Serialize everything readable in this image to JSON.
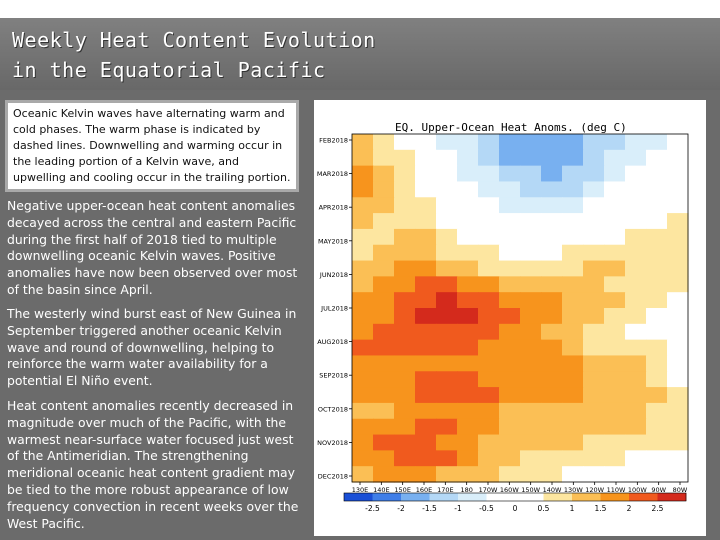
{
  "title": {
    "line1": "Weekly Heat Content Evolution",
    "line2": "in the Equatorial Pacific"
  },
  "note": "Oceanic Kelvin waves have alternating warm and cold phases. The warm phase is indicated by dashed lines. Downwelling and warming occur in the leading portion of a Kelvin wave, and upwelling and cooling occur in the trailing portion.",
  "paragraphs": [
    "Negative upper-ocean heat content anomalies decayed across the central and eastern Pacific during the first half of 2018 tied to multiple downwelling oceanic Kelvin waves. Positive anomalies have now been observed over most of the basin since April.",
    "The westerly wind burst east of New Guinea in September triggered another oceanic Kelvin wave and round of downwelling, helping to reinforce the warm water availability for a potential El Niño event.",
    "Heat content anomalies recently decreased in magnitude over much of the Pacific, with the warmest near-surface water focused just west of the Antimeridian. The strengthening meridional oceanic heat content gradient may be tied to the more robust appearance of low frequency convection in recent weeks over the West Pacific."
  ],
  "chart_data": {
    "type": "heatmap",
    "title": "EQ. Upper-Ocean Heat Anoms. (deg C)",
    "y_ticks": [
      "FEB2018",
      "MAR2018",
      "APR2018",
      "MAY2018",
      "JUN2018",
      "JUL2018",
      "AUG2018",
      "SEP2018",
      "OCT2018",
      "NOV2018",
      "DEC2018"
    ],
    "x_ticks": [
      "130E",
      "140E",
      "150E",
      "160E",
      "170E",
      "180",
      "170W",
      "160W",
      "150W",
      "140W",
      "130W",
      "120W",
      "110W",
      "100W",
      "90W",
      "80W"
    ],
    "colorbar_labels": [
      "-2.5",
      "-2",
      "-1.5",
      "-1",
      "-0.5",
      "0",
      "0.5",
      "1",
      "1.5",
      "2",
      "2.5"
    ],
    "colors": [
      "#1a4fd6",
      "#3f7ee8",
      "#78b0f0",
      "#b4d8f6",
      "#d9eefa",
      "#ffffff",
      "#ffffff",
      "#fde6a0",
      "#fbbf55",
      "#f7941d",
      "#f05a1e",
      "#d42a1c"
    ],
    "grid": [
      [
        8,
        7,
        6,
        5,
        4,
        4,
        3,
        2,
        2,
        2,
        2,
        3,
        3,
        4,
        4,
        5
      ],
      [
        8,
        7,
        7,
        6,
        5,
        4,
        3,
        2,
        2,
        2,
        2,
        3,
        4,
        4,
        5,
        5
      ],
      [
        9,
        8,
        7,
        6,
        5,
        4,
        4,
        3,
        3,
        2,
        3,
        3,
        4,
        5,
        5,
        6
      ],
      [
        9,
        8,
        7,
        6,
        6,
        5,
        4,
        4,
        3,
        3,
        3,
        4,
        5,
        5,
        6,
        6
      ],
      [
        8,
        8,
        7,
        7,
        6,
        5,
        5,
        4,
        4,
        4,
        4,
        5,
        5,
        6,
        6,
        6
      ],
      [
        8,
        7,
        7,
        7,
        6,
        6,
        5,
        5,
        5,
        5,
        5,
        5,
        6,
        6,
        6,
        7
      ],
      [
        7,
        7,
        8,
        8,
        7,
        6,
        6,
        5,
        5,
        6,
        6,
        6,
        6,
        7,
        7,
        7
      ],
      [
        7,
        8,
        8,
        8,
        7,
        7,
        7,
        6,
        6,
        6,
        7,
        7,
        7,
        7,
        7,
        7
      ],
      [
        8,
        8,
        9,
        9,
        8,
        8,
        7,
        7,
        7,
        7,
        7,
        8,
        8,
        7,
        7,
        7
      ],
      [
        8,
        9,
        9,
        10,
        10,
        9,
        9,
        8,
        8,
        8,
        8,
        8,
        7,
        7,
        7,
        7
      ],
      [
        9,
        9,
        10,
        10,
        11,
        10,
        10,
        9,
        9,
        9,
        8,
        8,
        8,
        7,
        7,
        6
      ],
      [
        9,
        9,
        10,
        11,
        11,
        11,
        10,
        10,
        9,
        9,
        8,
        8,
        7,
        7,
        6,
        6
      ],
      [
        9,
        10,
        10,
        10,
        10,
        10,
        10,
        9,
        9,
        8,
        8,
        7,
        7,
        6,
        6,
        6
      ],
      [
        10,
        10,
        10,
        10,
        10,
        10,
        9,
        9,
        9,
        9,
        8,
        7,
        7,
        7,
        7,
        6
      ],
      [
        9,
        9,
        9,
        9,
        9,
        9,
        9,
        9,
        9,
        9,
        9,
        8,
        8,
        8,
        7,
        6
      ],
      [
        9,
        9,
        9,
        10,
        10,
        10,
        9,
        9,
        9,
        9,
        9,
        8,
        8,
        8,
        7,
        6
      ],
      [
        9,
        9,
        9,
        10,
        10,
        10,
        10,
        9,
        9,
        9,
        9,
        8,
        8,
        8,
        8,
        7
      ],
      [
        8,
        8,
        9,
        9,
        9,
        9,
        9,
        8,
        8,
        8,
        8,
        8,
        8,
        8,
        7,
        7
      ],
      [
        9,
        9,
        9,
        10,
        10,
        9,
        9,
        8,
        8,
        8,
        8,
        8,
        8,
        8,
        7,
        7
      ],
      [
        9,
        10,
        10,
        10,
        9,
        9,
        8,
        8,
        8,
        8,
        8,
        7,
        7,
        7,
        7,
        7
      ],
      [
        9,
        9,
        10,
        10,
        10,
        9,
        8,
        8,
        7,
        7,
        7,
        7,
        7,
        6,
        6,
        6
      ],
      [
        8,
        9,
        9,
        9,
        8,
        8,
        8,
        7,
        7,
        7,
        6,
        6,
        6,
        6,
        5,
        5
      ]
    ]
  }
}
